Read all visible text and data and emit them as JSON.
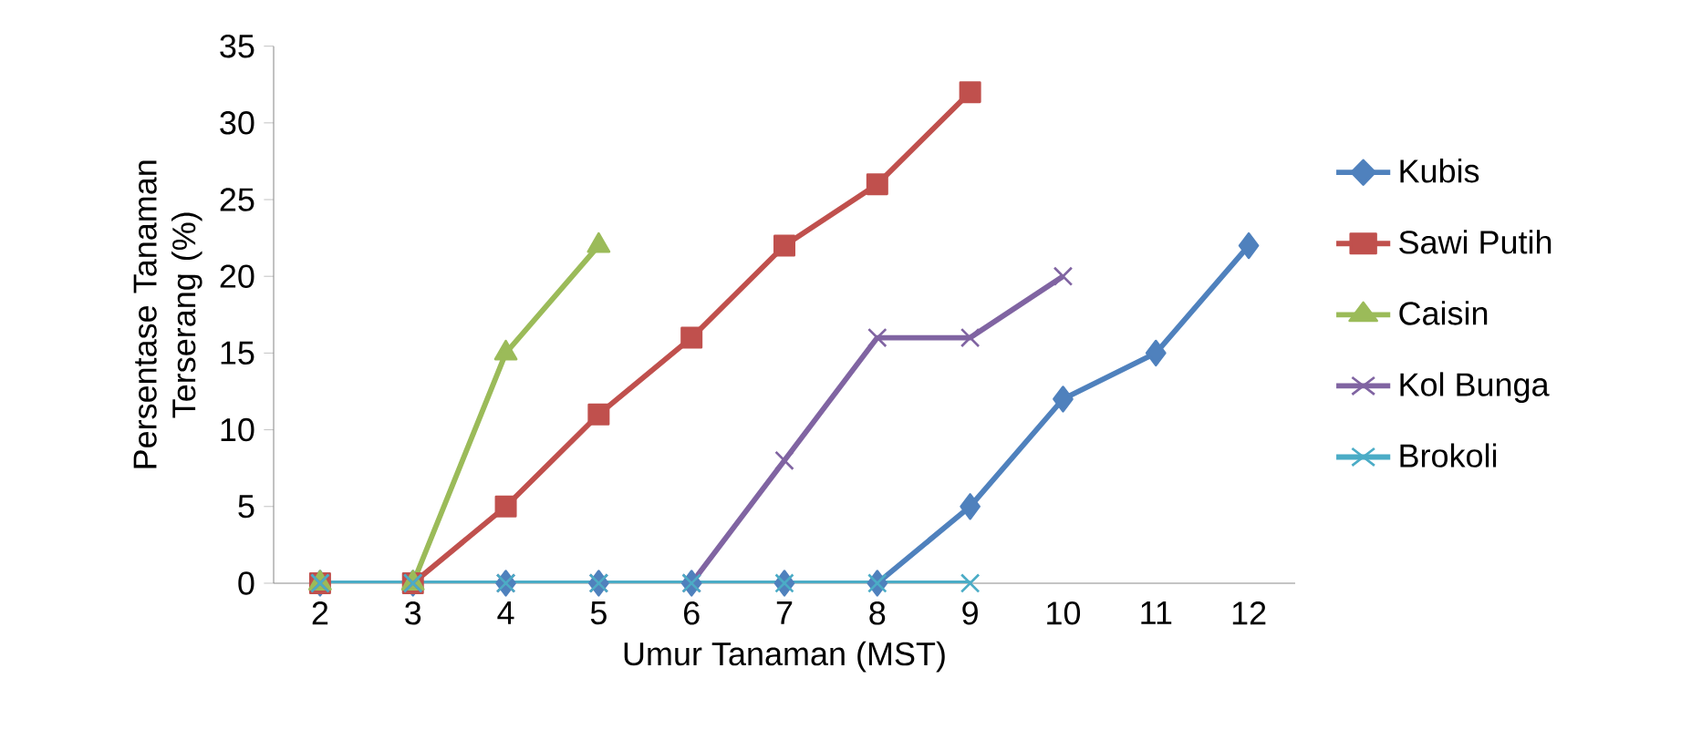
{
  "chart_data": {
    "type": "line",
    "ylabel": "Persentase Tanaman Terserang (%)",
    "xlabel": "Umur Tanaman (MST)",
    "categories": [
      "2",
      "3",
      "4",
      "5",
      "6",
      "7",
      "8",
      "9",
      "10",
      "11",
      "12"
    ],
    "ylim": [
      0,
      35
    ],
    "yticks": [
      0,
      5,
      10,
      15,
      20,
      25,
      30,
      35
    ],
    "legend": "right",
    "grid": false,
    "series": [
      {
        "name": "Kubis",
        "color": "#4f81bd",
        "marker": "diamond",
        "values": [
          0,
          0,
          0,
          0,
          0,
          0,
          0,
          5,
          12,
          15,
          22
        ]
      },
      {
        "name": "Sawi Putih",
        "color": "#c0504d",
        "marker": "square",
        "values": [
          0,
          0,
          5,
          11,
          16,
          22,
          26,
          32,
          null,
          null,
          null
        ]
      },
      {
        "name": "Caisin",
        "color": "#9bbb59",
        "marker": "triangle",
        "values": [
          0,
          0,
          15,
          22,
          null,
          null,
          null,
          null,
          null,
          null,
          null
        ]
      },
      {
        "name": "Kol Bunga",
        "color": "#8064a2",
        "marker": "cross",
        "values": [
          0,
          0,
          0,
          0,
          0,
          8,
          16,
          16,
          20,
          null,
          null
        ]
      },
      {
        "name": "Brokoli",
        "color": "#4bacc6",
        "marker": "cross",
        "values": [
          0,
          0,
          0,
          0,
          0,
          0,
          0,
          0,
          null,
          null,
          null
        ]
      }
    ]
  }
}
